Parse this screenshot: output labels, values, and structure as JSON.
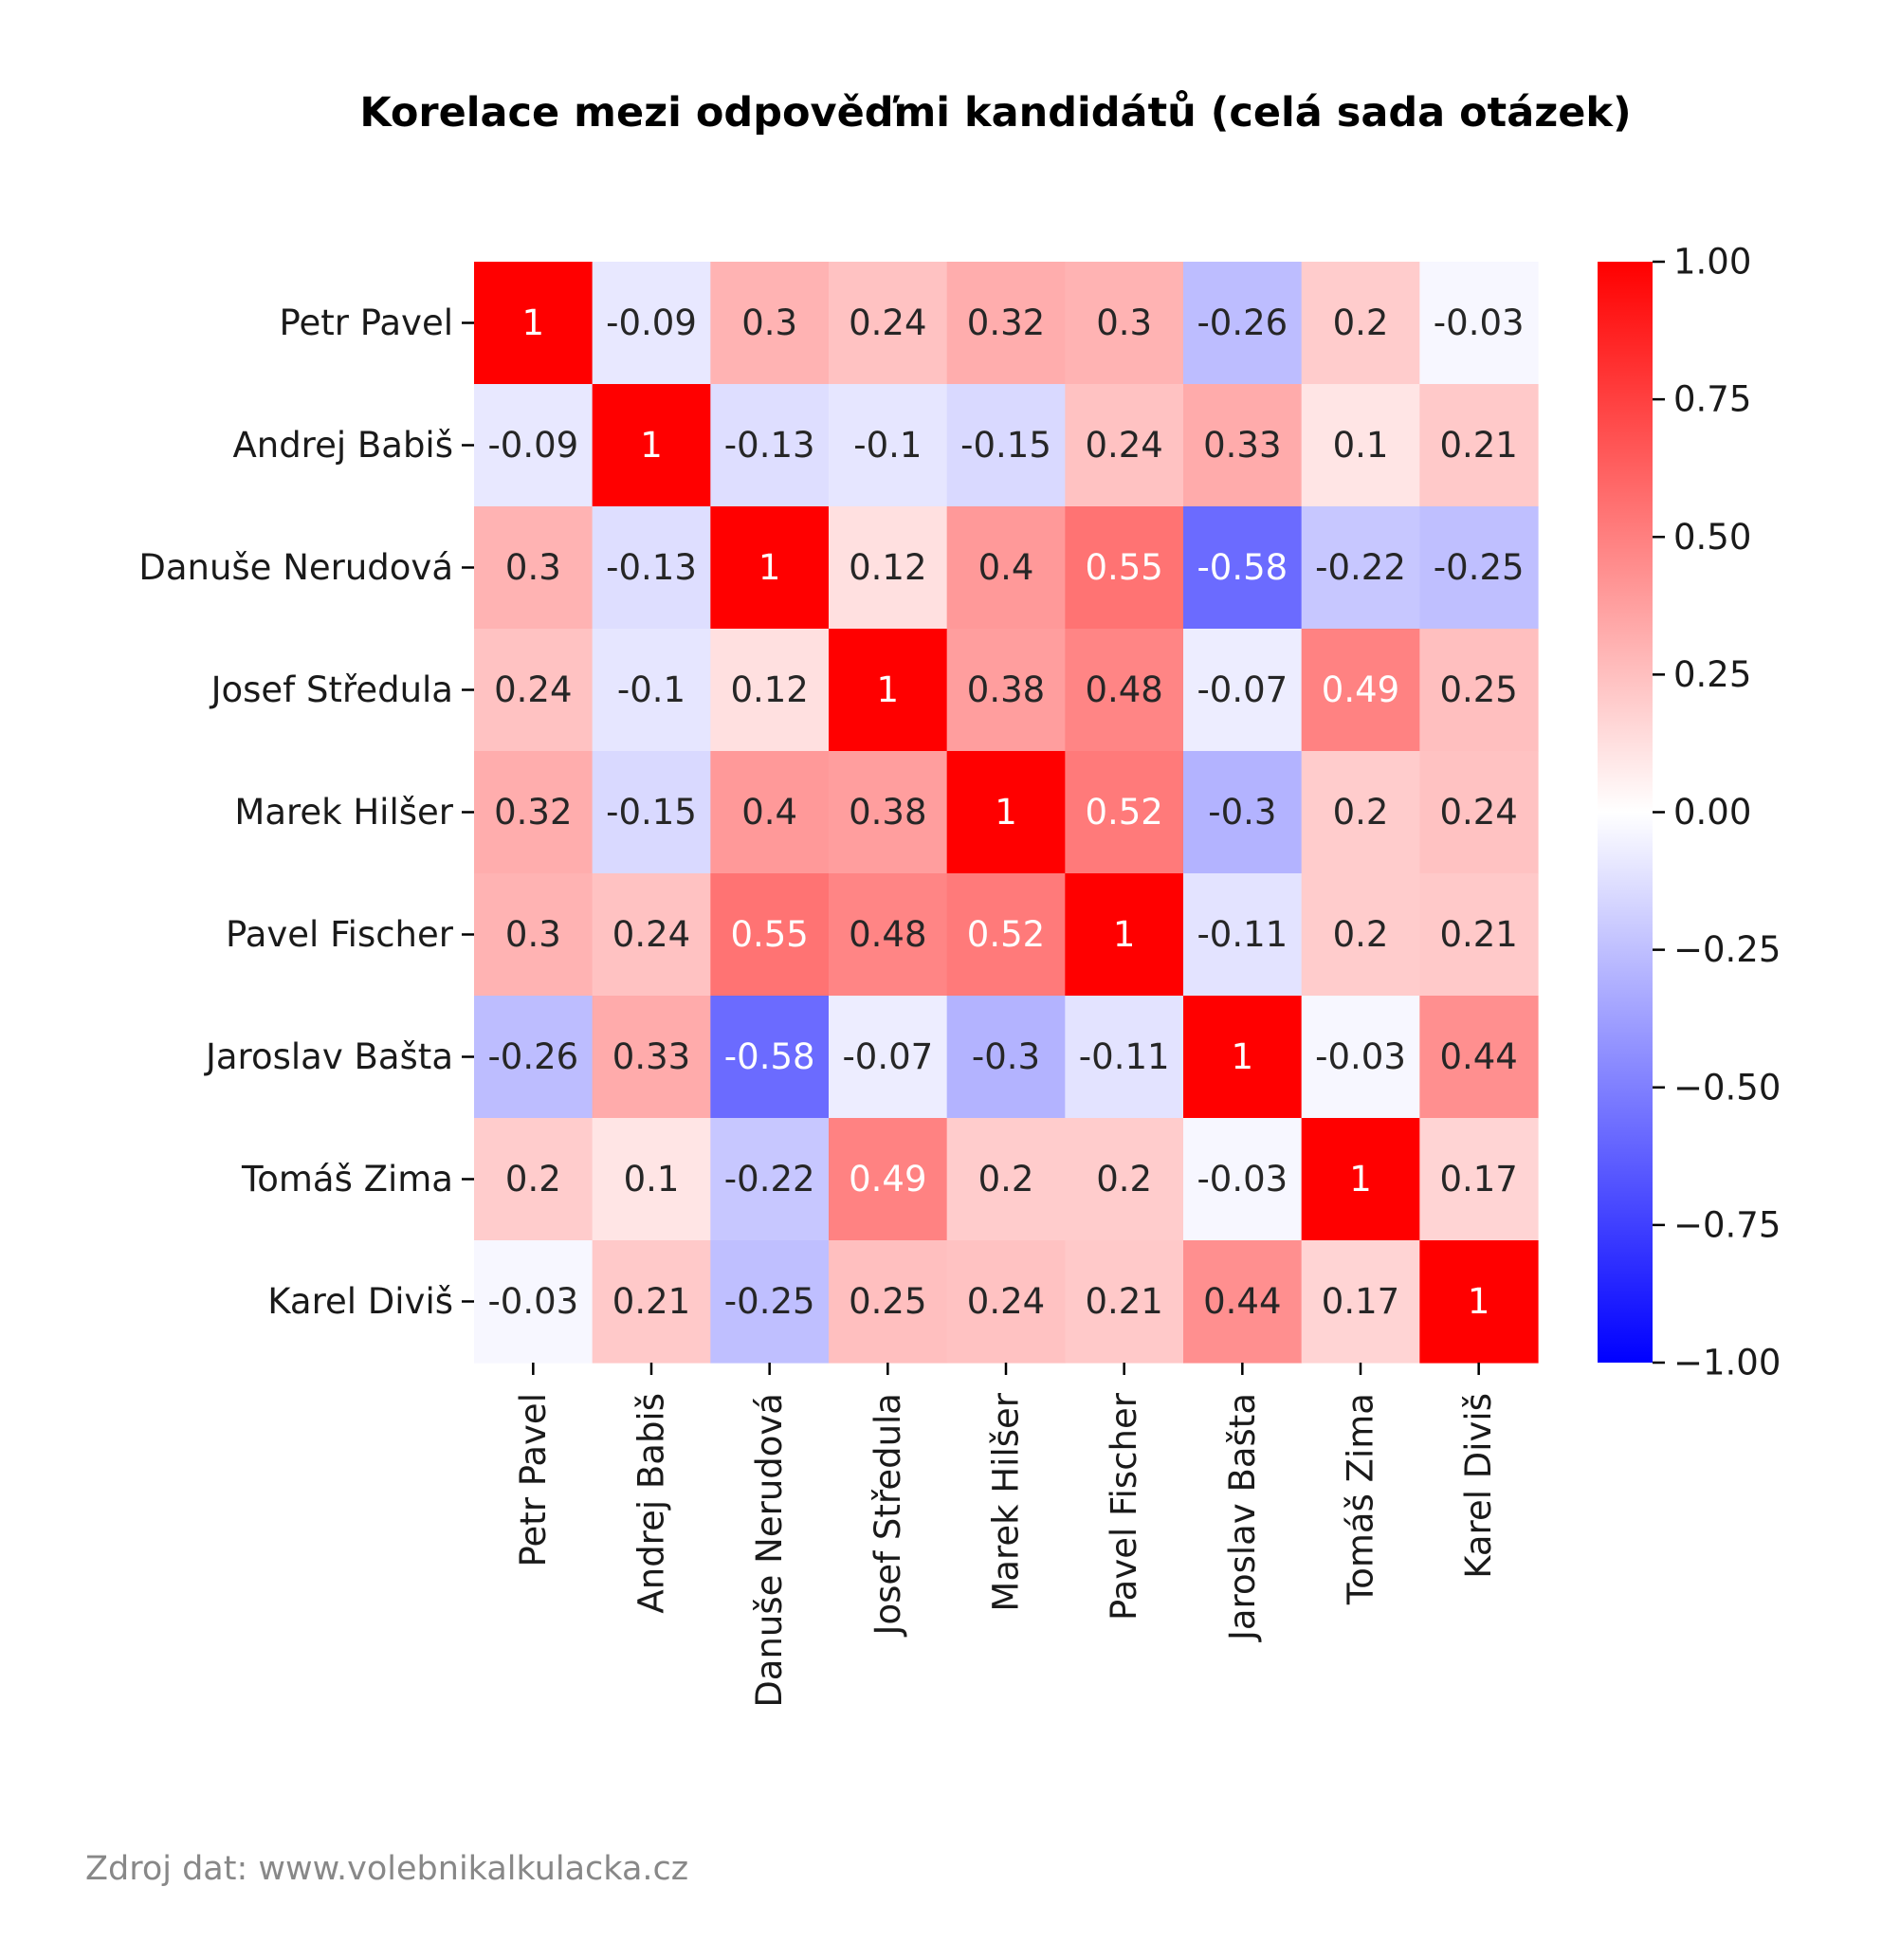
{
  "chart_data": {
    "type": "heatmap",
    "title": "Korelace mezi odpověďmi kandidátů (celá sada otázek)",
    "xlabel": "",
    "ylabel": "",
    "row_labels": [
      "Petr Pavel",
      "Andrej Babiš",
      "Danuše Nerudová",
      "Josef Středula",
      "Marek Hilšer",
      "Pavel Fischer",
      "Jaroslav Bašta",
      "Tomáš Zima",
      "Karel Diviš"
    ],
    "col_labels": [
      "Petr Pavel",
      "Andrej Babiš",
      "Danuše Nerudová",
      "Josef Středula",
      "Marek Hilšer",
      "Pavel Fischer",
      "Jaroslav Bašta",
      "Tomáš Zima",
      "Karel Diviš"
    ],
    "values": [
      [
        1,
        -0.09,
        0.3,
        0.24,
        0.32,
        0.3,
        -0.26,
        0.2,
        -0.03
      ],
      [
        -0.09,
        1,
        -0.13,
        -0.1,
        -0.15,
        0.24,
        0.33,
        0.1,
        0.21
      ],
      [
        0.3,
        -0.13,
        1,
        0.12,
        0.4,
        0.55,
        -0.58,
        -0.22,
        -0.25
      ],
      [
        0.24,
        -0.1,
        0.12,
        1,
        0.38,
        0.48,
        -0.07,
        0.49,
        0.25
      ],
      [
        0.32,
        -0.15,
        0.4,
        0.38,
        1,
        0.52,
        -0.3,
        0.2,
        0.24
      ],
      [
        0.3,
        0.24,
        0.55,
        0.48,
        0.52,
        1,
        -0.11,
        0.2,
        0.21
      ],
      [
        -0.26,
        0.33,
        -0.58,
        -0.07,
        -0.3,
        -0.11,
        1,
        -0.03,
        0.44
      ],
      [
        0.2,
        0.1,
        -0.22,
        0.49,
        0.2,
        0.2,
        -0.03,
        1,
        0.17
      ],
      [
        -0.03,
        0.21,
        -0.25,
        0.25,
        0.24,
        0.21,
        0.44,
        0.17,
        1
      ]
    ],
    "colorscale": "bwr",
    "colors": {
      "low": "#0000ff",
      "mid": "#ffffff",
      "high": "#ff0000"
    },
    "colorbar": {
      "range": [
        -1,
        1
      ],
      "ticks": [
        1,
        0.75,
        0.5,
        0.25,
        0,
        -0.25,
        -0.5,
        -0.75,
        -1
      ],
      "tick_labels": [
        "1.00",
        "0.75",
        "0.50",
        "0.25",
        "0.00",
        "−0.25",
        "−0.50",
        "−0.75",
        "−1.00"
      ]
    },
    "grid": false,
    "legend": "colorbar-right"
  },
  "footer": {
    "source": "Zdroj dat: www.volebnikalkulacka.cz"
  }
}
